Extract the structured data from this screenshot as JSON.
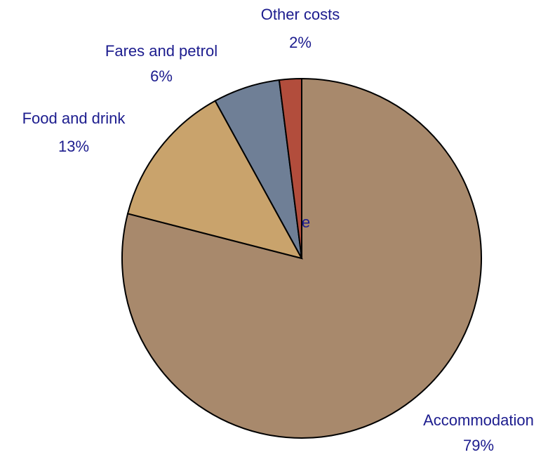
{
  "chart_data": {
    "type": "pie",
    "categories": [
      "Accommodation",
      "Food and drink",
      "Fares and petrol",
      "Other costs"
    ],
    "values": [
      79,
      13,
      6,
      2
    ],
    "value_labels": [
      "79%",
      "13%",
      "6%",
      "2%"
    ],
    "colors": [
      "#a8896c",
      "#c9a36c",
      "#6f7f96",
      "#b24d3c"
    ],
    "annotation": "e"
  }
}
